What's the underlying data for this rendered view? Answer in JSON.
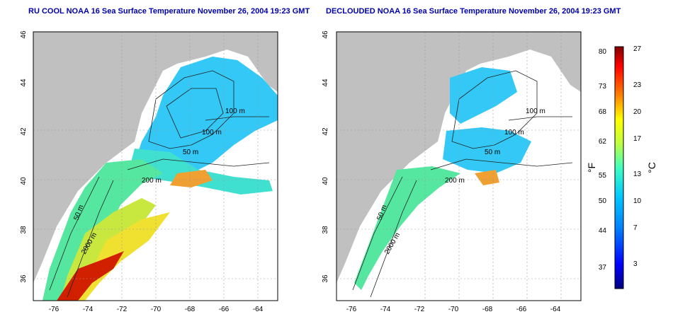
{
  "maps": [
    {
      "title": "RU COOL NOAA 16 Sea Surface Temperature November 26, 2004 19:23 GMT",
      "x_ticks": [
        "-76",
        "-74",
        "-72",
        "-70",
        "-68",
        "-66",
        "-64"
      ],
      "y_ticks": [
        "46",
        "44",
        "42",
        "40",
        "38",
        "36"
      ],
      "contour_labels": [
        "100 m",
        "100 m",
        "50 m",
        "200 m",
        "50 m",
        "2000 m"
      ]
    },
    {
      "title": "DECLOUDED NOAA 16 Sea Surface Temperature November 26, 2004 19:23 GMT",
      "x_ticks": [
        "-76",
        "-74",
        "-72",
        "-70",
        "-68",
        "-66",
        "-64"
      ],
      "y_ticks": [
        "46",
        "44",
        "42",
        "40",
        "38",
        "36"
      ],
      "contour_labels": [
        "100 m",
        "100 m",
        "50 m",
        "200 m",
        "50 m",
        "2000 m"
      ]
    }
  ],
  "colorbar": {
    "fahrenheit_label": "°F",
    "celsius_label": "°C",
    "fahrenheit_ticks": [
      "80",
      "73",
      "68",
      "62",
      "55",
      "50",
      "44",
      "37"
    ],
    "celsius_ticks": [
      "27",
      "23",
      "20",
      "17",
      "13",
      "10",
      "7",
      "3"
    ],
    "colors": [
      "#00007f",
      "#0000ff",
      "#0080ff",
      "#00c8ff",
      "#40ffc0",
      "#c0ff40",
      "#ffff00",
      "#ff8000",
      "#ff0000",
      "#800000"
    ]
  }
}
